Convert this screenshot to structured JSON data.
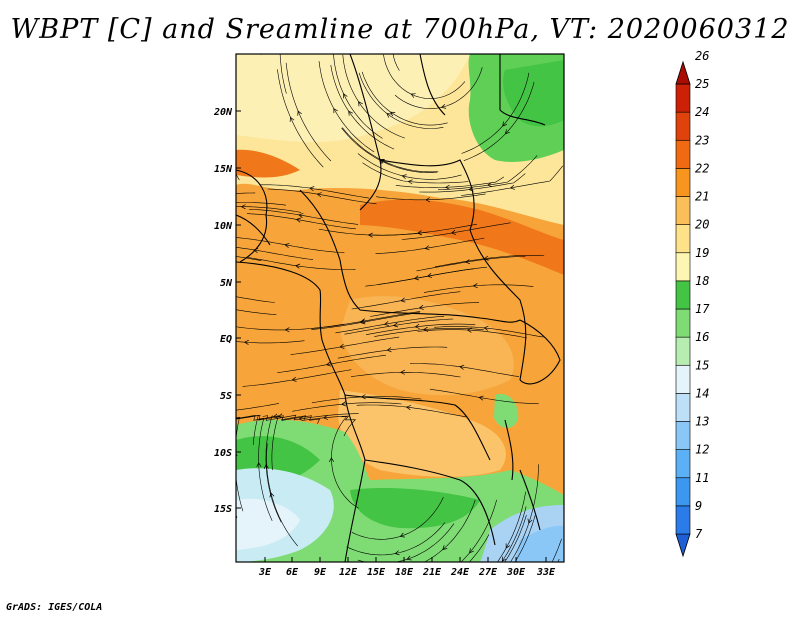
{
  "title": "WBPT [C] and Sreamline at 700hPa, VT: 2020060312",
  "credit": "GrADS: IGES/COLA",
  "map": {
    "lon_ticks": [
      "3E",
      "6E",
      "9E",
      "12E",
      "15E",
      "18E",
      "21E",
      "24E",
      "27E",
      "30E",
      "33E"
    ],
    "lat_ticks": [
      "20N",
      "15N",
      "10N",
      "5N",
      "EQ",
      "5S",
      "10S",
      "15S"
    ]
  },
  "colorbar": {
    "labels": [
      "7",
      "9",
      "11",
      "12",
      "13",
      "14",
      "15",
      "16",
      "17",
      "18",
      "19",
      "20",
      "21",
      "22",
      "23",
      "24",
      "25",
      "26"
    ],
    "colors": [
      "#1f5fd6",
      "#2b7ce8",
      "#3c97f0",
      "#5cb0f5",
      "#8ac7f7",
      "#bde0f8",
      "#e4f4fa",
      "#b7edb0",
      "#7fdc74",
      "#44c444",
      "#fdf6b3",
      "#fde28a",
      "#fbbf5a",
      "#f7951f",
      "#ef6a12",
      "#e0420c",
      "#cc2106",
      "#a80c02"
    ]
  }
}
